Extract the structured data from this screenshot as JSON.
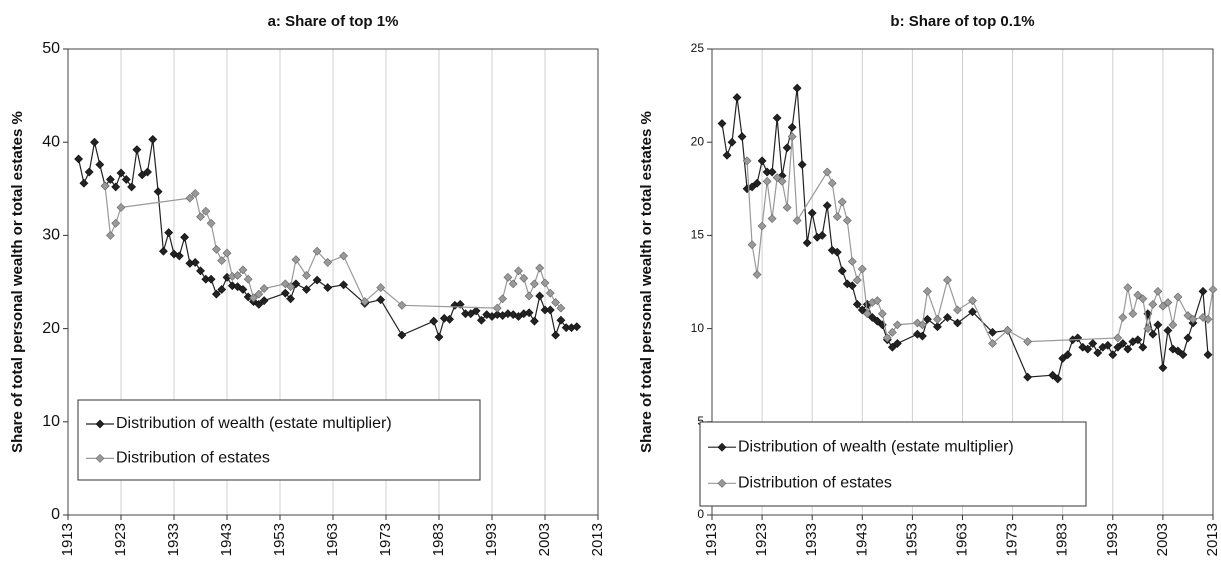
{
  "chart_data": [
    {
      "type": "line",
      "title": "a: Share of top 1%",
      "ylabel": "Share of total personal wealth or total estates %",
      "xlim": [
        1913,
        2013
      ],
      "xticks": [
        1913,
        1923,
        1933,
        1943,
        1953,
        1963,
        1973,
        1983,
        1993,
        2003,
        2013
      ],
      "ylim": [
        0,
        50
      ],
      "yticks": [
        0,
        10,
        20,
        30,
        40,
        50
      ],
      "grid": "x",
      "legend": "lower left",
      "series": [
        {
          "name": "Distribution of wealth (estate multiplier)",
          "color": "#222222",
          "x": [
            1915,
            1916,
            1917,
            1918,
            1919,
            1920,
            1921,
            1922,
            1923,
            1924,
            1925,
            1926,
            1927,
            1928,
            1929,
            1930,
            1931,
            1932,
            1933,
            1934,
            1935,
            1936,
            1937,
            1938,
            1939,
            1940,
            1941,
            1942,
            1943,
            1944,
            1945,
            1946,
            1947,
            1948,
            1949,
            1950,
            1954,
            1955,
            1956,
            1958,
            1960,
            1962,
            1965,
            1969,
            1972,
            1976,
            1982,
            1983,
            1984,
            1985,
            1986,
            1987,
            1988,
            1989,
            1990,
            1991,
            1992,
            1993,
            1994,
            1995,
            1996,
            1997,
            1998,
            1999,
            2000,
            2001,
            2002,
            2003,
            2004,
            2005,
            2006,
            2007,
            2008,
            2009
          ],
          "values": [
            38.2,
            35.6,
            36.8,
            40.0,
            37.6,
            35.3,
            36.0,
            35.2,
            36.7,
            36.0,
            35.2,
            39.2,
            36.5,
            36.8,
            40.3,
            34.7,
            28.3,
            30.3,
            28.0,
            27.8,
            29.8,
            27.0,
            27.1,
            26.2,
            25.3,
            25.3,
            23.7,
            24.2,
            25.5,
            24.6,
            24.5,
            24.2,
            23.4,
            22.9,
            22.6,
            23.0,
            23.8,
            23.2,
            24.8,
            24.2,
            25.2,
            24.4,
            24.7,
            22.7,
            23.1,
            19.3,
            20.8,
            19.1,
            21.1,
            21.0,
            22.5,
            22.6,
            21.6,
            21.6,
            21.9,
            20.9,
            21.5,
            21.3,
            21.5,
            21.4,
            21.6,
            21.5,
            21.3,
            21.6,
            21.7,
            20.8,
            23.5,
            22.0,
            22.0,
            19.3,
            20.9,
            20.1,
            20.1,
            20.2
          ]
        },
        {
          "name": "Distribution of estates",
          "color": "#999999",
          "x": [
            1920,
            1921,
            1922,
            1923,
            1936,
            1937,
            1938,
            1939,
            1940,
            1941,
            1942,
            1943,
            1944,
            1945,
            1946,
            1947,
            1948,
            1949,
            1950,
            1954,
            1955,
            1956,
            1958,
            1960,
            1962,
            1965,
            1969,
            1972,
            1976,
            1994,
            1995,
            1996,
            1997,
            1998,
            1999,
            2000,
            2001,
            2002,
            2003,
            2004,
            2005,
            2006
          ],
          "values": [
            35.3,
            30.0,
            31.3,
            33.0,
            34.0,
            34.5,
            32.0,
            32.6,
            31.3,
            28.5,
            27.3,
            28.1,
            25.6,
            25.7,
            26.3,
            25.3,
            23.3,
            23.7,
            24.3,
            24.8,
            24.5,
            27.4,
            25.7,
            28.3,
            27.1,
            27.8,
            22.9,
            24.4,
            22.5,
            22.2,
            23.2,
            25.5,
            24.8,
            26.2,
            25.4,
            23.5,
            24.8,
            26.5,
            24.9,
            23.8,
            22.8,
            22.2
          ]
        }
      ]
    },
    {
      "type": "line",
      "title": "b: Share of top 0.1%",
      "ylabel": "Share of total personal wealth or total estates %",
      "xlim": [
        1913,
        2013
      ],
      "xticks": [
        1913,
        1923,
        1933,
        1943,
        1953,
        1963,
        1973,
        1983,
        1993,
        2003,
        2013
      ],
      "ylim": [
        0,
        25
      ],
      "yticks": [
        0,
        5,
        10,
        15,
        20,
        25
      ],
      "grid": "x",
      "legend": "lower left",
      "series": [
        {
          "name": "Distribution of wealth (estate multiplier)",
          "color": "#222222",
          "x": [
            1915,
            1916,
            1917,
            1918,
            1919,
            1920,
            1921,
            1922,
            1923,
            1924,
            1925,
            1926,
            1927,
            1928,
            1929,
            1930,
            1931,
            1932,
            1933,
            1934,
            1935,
            1936,
            1937,
            1938,
            1939,
            1940,
            1941,
            1942,
            1943,
            1944,
            1945,
            1946,
            1947,
            1948,
            1949,
            1950,
            1954,
            1955,
            1956,
            1958,
            1960,
            1962,
            1965,
            1969,
            1972,
            1976,
            1981,
            1982,
            1983,
            1984,
            1985,
            1986,
            1987,
            1988,
            1989,
            1990,
            1991,
            1992,
            1993,
            1994,
            1995,
            1996,
            1997,
            1998,
            1999,
            2000,
            2001,
            2002,
            2003,
            2004,
            2005,
            2006,
            2007,
            2008,
            2009,
            2011,
            2012
          ],
          "values": [
            21.0,
            19.3,
            20.0,
            22.4,
            20.3,
            17.5,
            17.6,
            17.8,
            19.0,
            18.4,
            18.4,
            21.3,
            18.2,
            19.7,
            20.8,
            22.9,
            18.8,
            14.6,
            16.2,
            14.9,
            15.0,
            16.6,
            14.2,
            14.1,
            13.1,
            12.4,
            12.3,
            11.3,
            11.0,
            11.3,
            10.6,
            10.4,
            10.2,
            9.4,
            9.0,
            9.2,
            9.7,
            9.6,
            10.5,
            10.1,
            10.6,
            10.3,
            10.9,
            9.8,
            9.9,
            7.4,
            7.5,
            7.3,
            8.4,
            8.6,
            9.4,
            9.5,
            9.0,
            8.9,
            9.2,
            8.7,
            9.0,
            9.1,
            8.6,
            9.0,
            9.2,
            8.9,
            9.3,
            9.4,
            9.0,
            10.8,
            9.7,
            10.2,
            7.9,
            9.9,
            8.9,
            8.8,
            8.6,
            9.5,
            10.3,
            12.0,
            8.6
          ]
        },
        {
          "name": "Distribution of estates",
          "color": "#999999",
          "x": [
            1920,
            1921,
            1922,
            1923,
            1924,
            1925,
            1926,
            1927,
            1928,
            1929,
            1930,
            1936,
            1937,
            1938,
            1939,
            1940,
            1941,
            1942,
            1943,
            1944,
            1945,
            1946,
            1947,
            1948,
            1949,
            1950,
            1954,
            1955,
            1956,
            1958,
            1960,
            1962,
            1965,
            1969,
            1972,
            1976,
            1994,
            1995,
            1996,
            1997,
            1998,
            1999,
            2000,
            2001,
            2002,
            2003,
            2004,
            2005,
            2006,
            2008,
            2009,
            2011,
            2012,
            2013
          ],
          "values": [
            19.0,
            14.5,
            12.9,
            15.5,
            17.9,
            15.9,
            18.1,
            17.9,
            16.5,
            20.3,
            15.8,
            18.4,
            17.8,
            16.0,
            16.8,
            15.8,
            13.6,
            12.6,
            13.2,
            10.8,
            11.4,
            11.5,
            10.8,
            9.5,
            9.8,
            10.2,
            10.3,
            10.2,
            12.0,
            10.5,
            12.6,
            11.0,
            11.5,
            9.2,
            9.9,
            9.3,
            9.5,
            10.6,
            12.2,
            10.8,
            11.8,
            11.6,
            10.0,
            11.3,
            12.0,
            11.2,
            11.4,
            10.2,
            11.7,
            10.7,
            10.5,
            10.6,
            10.5,
            12.1
          ]
        }
      ]
    }
  ]
}
